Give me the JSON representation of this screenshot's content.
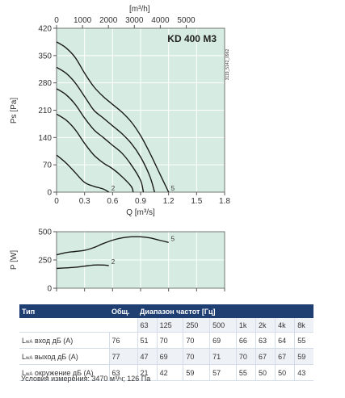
{
  "chart_data": [
    {
      "type": "line",
      "title": "KD 400 M3",
      "code": "3119_5142_0962",
      "xlabel": "Q [m³/s]",
      "ylabel": "Ps [Pa]",
      "x2label": "[m³/h]",
      "xlim": [
        0,
        1.8
      ],
      "ylim": [
        0,
        420
      ],
      "x2lim": [
        0,
        6480
      ],
      "xticks": [
        0,
        0.3,
        0.6,
        0.9,
        1.2,
        1.5,
        1.8
      ],
      "xtick_labels": [
        "0",
        "0.3",
        "0.6",
        "0.9",
        "1.2",
        "1.5",
        "1.8"
      ],
      "yticks": [
        0,
        70,
        140,
        210,
        280,
        350,
        420
      ],
      "ytick_labels": [
        "0",
        "70",
        "140",
        "210",
        "280",
        "350",
        "420"
      ],
      "x2ticks": [
        0,
        1000,
        2000,
        3000,
        4000,
        5000
      ],
      "x2tick_labels": [
        "0",
        "1000",
        "2000",
        "3000",
        "4000",
        "5000"
      ],
      "grid": true,
      "series": [
        {
          "name": "5",
          "x": [
            0,
            0.1,
            0.2,
            0.3,
            0.4,
            0.5,
            0.6,
            0.7,
            0.8,
            0.9,
            1.0,
            1.1,
            1.2
          ],
          "y": [
            385,
            370,
            345,
            305,
            270,
            245,
            225,
            205,
            180,
            145,
            100,
            50,
            0
          ]
        },
        {
          "name": "",
          "x": [
            0,
            0.1,
            0.2,
            0.3,
            0.4,
            0.5,
            0.6,
            0.7,
            0.8,
            0.9,
            1.0,
            1.05
          ],
          "y": [
            320,
            305,
            280,
            245,
            210,
            190,
            170,
            150,
            125,
            90,
            40,
            0
          ]
        },
        {
          "name": "",
          "x": [
            0,
            0.1,
            0.2,
            0.3,
            0.4,
            0.5,
            0.6,
            0.7,
            0.8,
            0.9,
            0.93
          ],
          "y": [
            265,
            250,
            225,
            190,
            160,
            140,
            120,
            100,
            70,
            30,
            0
          ]
        },
        {
          "name": "",
          "x": [
            0,
            0.1,
            0.2,
            0.3,
            0.4,
            0.5,
            0.6,
            0.7,
            0.8,
            0.82
          ],
          "y": [
            200,
            185,
            160,
            125,
            95,
            75,
            60,
            40,
            15,
            0
          ]
        },
        {
          "name": "2",
          "x": [
            0,
            0.1,
            0.2,
            0.3,
            0.4,
            0.5,
            0.56
          ],
          "y": [
            95,
            75,
            50,
            25,
            15,
            8,
            0
          ]
        }
      ]
    },
    {
      "type": "line",
      "xlabel": "",
      "ylabel": "P [W]",
      "xlim": [
        0,
        1.8
      ],
      "ylim": [
        0,
        500
      ],
      "xticks": [
        0,
        0.3,
        0.6,
        0.9,
        1.2,
        1.5,
        1.8
      ],
      "yticks": [
        0,
        250,
        500
      ],
      "ytick_labels": [
        "0",
        "250",
        "500"
      ],
      "grid": true,
      "series": [
        {
          "name": "5",
          "x": [
            0,
            0.1,
            0.2,
            0.3,
            0.4,
            0.5,
            0.6,
            0.7,
            0.8,
            0.9,
            1.0,
            1.1,
            1.2
          ],
          "y": [
            295,
            315,
            325,
            335,
            360,
            395,
            425,
            445,
            455,
            455,
            445,
            425,
            405
          ]
        },
        {
          "name": "2",
          "x": [
            0,
            0.1,
            0.2,
            0.3,
            0.4,
            0.5,
            0.56
          ],
          "y": [
            175,
            180,
            185,
            195,
            205,
            205,
            200
          ]
        }
      ]
    }
  ],
  "table": {
    "headers": {
      "type": "Тип",
      "total": "Общ.",
      "bands": "Диапазон частот [Гц]"
    },
    "bands": [
      "63",
      "125",
      "250",
      "500",
      "1k",
      "2k",
      "4k",
      "8k"
    ],
    "rows": [
      {
        "L": "L",
        "sub": "wA",
        "label": " вход дБ (А)",
        "total": "76",
        "values": [
          "51",
          "70",
          "70",
          "69",
          "66",
          "63",
          "64",
          "55"
        ]
      },
      {
        "L": "L",
        "sub": "wA",
        "label": " выход дБ (А)",
        "total": "77",
        "values": [
          "47",
          "69",
          "70",
          "71",
          "70",
          "67",
          "67",
          "59"
        ]
      },
      {
        "L": "L",
        "sub": "wA",
        "label": " окружение дБ (А)",
        "total": "63",
        "values": [
          "21",
          "42",
          "59",
          "57",
          "55",
          "50",
          "50",
          "43"
        ]
      }
    ],
    "conditions": "Условия измерения: 3470 м³/ч; 126 Па"
  },
  "colors": {
    "plot_bg": "#d6ece3",
    "grid": "#ffffff",
    "curve": "#1a1a1a",
    "header_bg": "#1f3f73",
    "row_band": "#eef2f7"
  }
}
